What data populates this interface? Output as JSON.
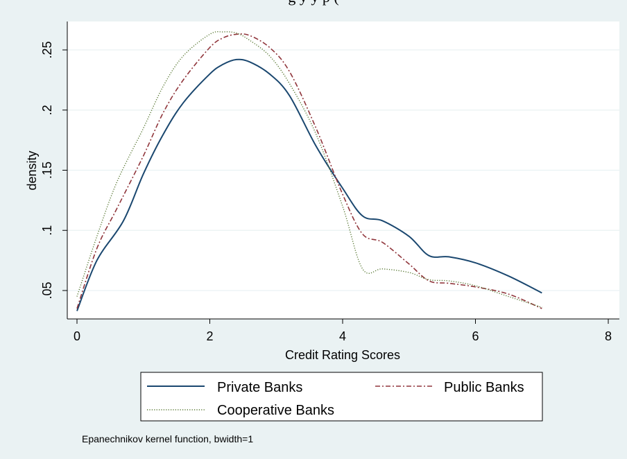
{
  "caption_fragment": "g                    y        y p                    (",
  "chart_data": {
    "type": "line",
    "xlabel": "Credit Rating Scores",
    "ylabel": "density",
    "xlim": [
      0,
      8
    ],
    "ylim": [
      0.03,
      0.27
    ],
    "x_ticks": [
      0,
      2,
      4,
      6,
      8
    ],
    "x_tick_labels": [
      "0",
      "2",
      "4",
      "6",
      "8"
    ],
    "y_ticks": [
      0.05,
      0.1,
      0.15,
      0.2,
      0.25
    ],
    "y_tick_labels": [
      ".05",
      ".1",
      ".15",
      ".2",
      ".25"
    ],
    "grid": true,
    "legend_position": "bottom",
    "note": "Epanechnikov kernel function, bwidth=1",
    "series": [
      {
        "name": "Private Banks",
        "color": "#1a476f",
        "style": "solid",
        "x": [
          0,
          0.3,
          0.7,
          1.0,
          1.3,
          1.6,
          2.0,
          2.2,
          2.4,
          2.6,
          2.9,
          3.2,
          3.6,
          4.0,
          4.3,
          4.6,
          5.0,
          5.3,
          5.6,
          6.0,
          6.5,
          7.0
        ],
        "y": [
          0.033,
          0.075,
          0.108,
          0.147,
          0.18,
          0.206,
          0.23,
          0.238,
          0.242,
          0.24,
          0.23,
          0.212,
          0.17,
          0.135,
          0.112,
          0.108,
          0.095,
          0.079,
          0.078,
          0.073,
          0.062,
          0.048
        ]
      },
      {
        "name": "Public Banks",
        "color": "#90353b",
        "style": "dash-dot",
        "x": [
          0,
          0.3,
          0.6,
          1.0,
          1.3,
          1.6,
          2.0,
          2.2,
          2.4,
          2.6,
          2.9,
          3.2,
          3.6,
          4.0,
          4.3,
          4.6,
          5.0,
          5.3,
          5.6,
          6.0,
          6.5,
          7.0
        ],
        "y": [
          0.035,
          0.085,
          0.118,
          0.162,
          0.198,
          0.225,
          0.252,
          0.26,
          0.263,
          0.262,
          0.252,
          0.232,
          0.185,
          0.13,
          0.097,
          0.09,
          0.072,
          0.058,
          0.056,
          0.053,
          0.047,
          0.035
        ]
      },
      {
        "name": "Cooperative Banks",
        "color": "#55752f",
        "style": "dotted",
        "x": [
          0,
          0.3,
          0.6,
          1.0,
          1.3,
          1.6,
          2.0,
          2.2,
          2.4,
          2.6,
          2.9,
          3.2,
          3.6,
          4.0,
          4.3,
          4.6,
          5.0,
          5.3,
          5.6,
          6.0,
          6.5,
          7.0
        ],
        "y": [
          0.045,
          0.095,
          0.14,
          0.185,
          0.22,
          0.245,
          0.263,
          0.265,
          0.264,
          0.258,
          0.245,
          0.222,
          0.18,
          0.12,
          0.068,
          0.068,
          0.065,
          0.059,
          0.058,
          0.054,
          0.045,
          0.036
        ]
      }
    ]
  }
}
